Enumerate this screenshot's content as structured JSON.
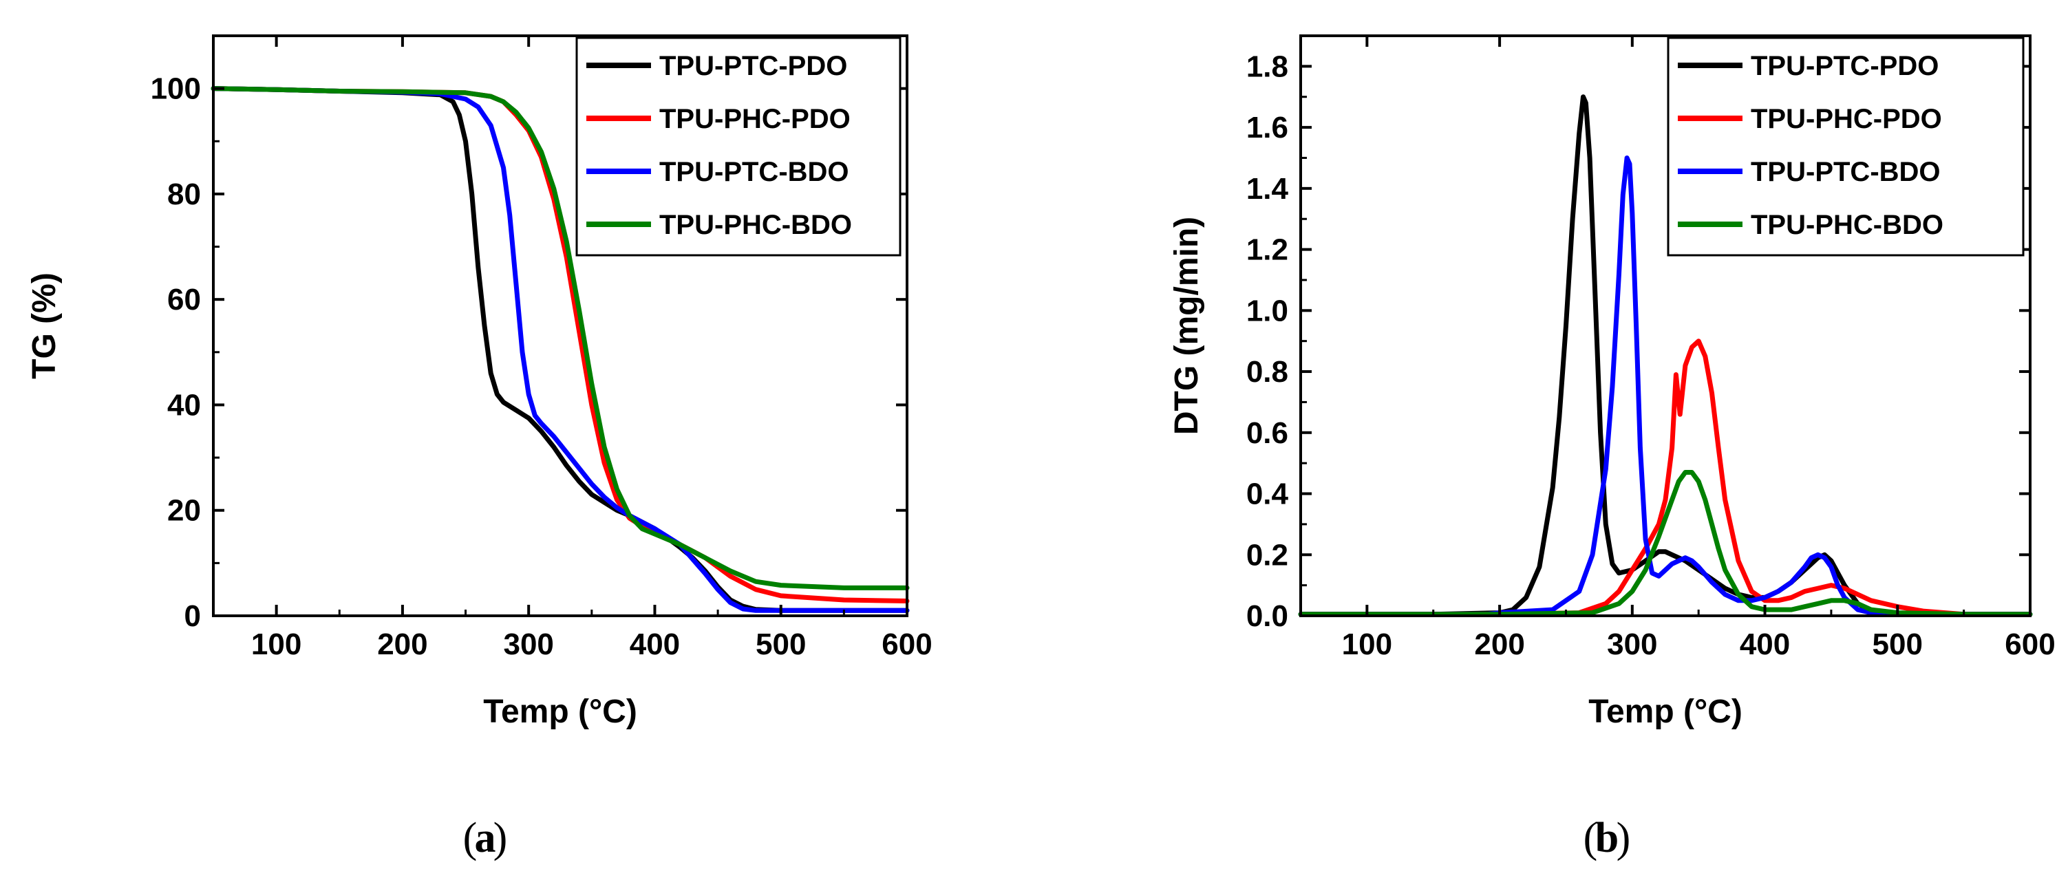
{
  "chart_data": [
    {
      "type": "line",
      "panel_label": "a",
      "xlabel": "Temp (°C)",
      "ylabel": "TG (%)",
      "xlim": [
        50,
        600
      ],
      "ylim": [
        0,
        110
      ],
      "xticks": [
        100,
        200,
        300,
        400,
        500,
        600
      ],
      "yticks": [
        0,
        20,
        40,
        60,
        80,
        100
      ],
      "legend_position": "top-right",
      "series": [
        {
          "name": "TPU-PTC-PDO",
          "color": "#000000",
          "x": [
            50,
            100,
            150,
            200,
            230,
            240,
            245,
            250,
            255,
            260,
            265,
            270,
            275,
            280,
            290,
            300,
            310,
            320,
            330,
            340,
            350,
            360,
            370,
            380,
            400,
            420,
            430,
            440,
            450,
            460,
            470,
            480,
            500,
            550,
            600
          ],
          "y": [
            100,
            99.8,
            99.5,
            99.2,
            98.8,
            97.5,
            95,
            90,
            80,
            66,
            55,
            46,
            42,
            40.5,
            39,
            37.5,
            35,
            32,
            28.5,
            25.5,
            23,
            21.5,
            20,
            19,
            16.5,
            13,
            11,
            8.5,
            5.5,
            3,
            1.8,
            1.2,
            1,
            1,
            1
          ]
        },
        {
          "name": "TPU-PHC-PDO",
          "color": "#ff0000",
          "x": [
            50,
            100,
            150,
            200,
            250,
            270,
            280,
            290,
            300,
            310,
            320,
            330,
            340,
            350,
            360,
            370,
            380,
            390,
            400,
            420,
            440,
            460,
            480,
            500,
            550,
            600
          ],
          "y": [
            100,
            99.8,
            99.5,
            99.4,
            99.2,
            98.5,
            97.5,
            95,
            92,
            87,
            79,
            68,
            54,
            40,
            29,
            22,
            18.5,
            17,
            16,
            13.5,
            11,
            7.5,
            5,
            3.8,
            3,
            2.8
          ]
        },
        {
          "name": "TPU-PTC-BDO",
          "color": "#0000ff",
          "x": [
            50,
            100,
            150,
            200,
            230,
            250,
            260,
            270,
            280,
            285,
            290,
            295,
            300,
            305,
            310,
            320,
            330,
            340,
            350,
            360,
            370,
            380,
            400,
            420,
            440,
            450,
            460,
            470,
            480,
            500,
            550,
            600
          ],
          "y": [
            100,
            99.8,
            99.5,
            99.3,
            99,
            98,
            96.5,
            93,
            85,
            76,
            63,
            50,
            42,
            38,
            36.5,
            34,
            31,
            28,
            25,
            22.5,
            20.5,
            19,
            16.5,
            13.5,
            8,
            5,
            2.5,
            1.3,
            1,
            1,
            1,
            1
          ]
        },
        {
          "name": "TPU-PHC-BDO",
          "color": "#008000",
          "x": [
            50,
            100,
            150,
            200,
            250,
            270,
            280,
            290,
            300,
            310,
            320,
            330,
            340,
            350,
            360,
            370,
            380,
            390,
            400,
            420,
            440,
            460,
            480,
            500,
            550,
            600
          ],
          "y": [
            100,
            99.8,
            99.5,
            99.4,
            99.2,
            98.5,
            97.5,
            95.5,
            92.5,
            88,
            81,
            71,
            58,
            44,
            32,
            24,
            19,
            16.5,
            15.5,
            13.5,
            11,
            8.5,
            6.5,
            5.8,
            5.3,
            5.3
          ]
        }
      ]
    },
    {
      "type": "line",
      "panel_label": "b",
      "xlabel": "Temp (°C)",
      "ylabel": "DTG (mg/min)",
      "xlim": [
        50,
        600
      ],
      "ylim": [
        0,
        1.9
      ],
      "xticks": [
        100,
        200,
        300,
        400,
        500,
        600
      ],
      "yticks": [
        0.0,
        0.2,
        0.4,
        0.6,
        0.8,
        1.0,
        1.2,
        1.4,
        1.6,
        1.8
      ],
      "legend_position": "top-right",
      "series": [
        {
          "name": "TPU-PTC-PDO",
          "color": "#000000",
          "x": [
            50,
            150,
            200,
            210,
            220,
            230,
            240,
            245,
            250,
            255,
            260,
            263,
            265,
            268,
            272,
            276,
            280,
            285,
            290,
            300,
            310,
            320,
            325,
            330,
            340,
            350,
            360,
            370,
            380,
            390,
            400,
            410,
            420,
            430,
            440,
            445,
            450,
            460,
            470,
            480,
            500,
            550,
            600
          ],
          "y": [
            0.005,
            0.005,
            0.01,
            0.02,
            0.06,
            0.16,
            0.42,
            0.65,
            0.95,
            1.3,
            1.58,
            1.7,
            1.68,
            1.5,
            1.05,
            0.6,
            0.3,
            0.17,
            0.14,
            0.15,
            0.18,
            0.21,
            0.21,
            0.2,
            0.18,
            0.15,
            0.12,
            0.09,
            0.07,
            0.06,
            0.06,
            0.08,
            0.11,
            0.15,
            0.19,
            0.2,
            0.18,
            0.1,
            0.04,
            0.015,
            0.005,
            0.005,
            0.005
          ]
        },
        {
          "name": "TPU-PHC-PDO",
          "color": "#ff0000",
          "x": [
            50,
            200,
            260,
            280,
            290,
            300,
            310,
            320,
            325,
            330,
            333,
            336,
            340,
            345,
            350,
            355,
            360,
            365,
            370,
            380,
            390,
            400,
            410,
            420,
            430,
            440,
            450,
            460,
            470,
            480,
            500,
            520,
            550,
            600
          ],
          "y": [
            0.005,
            0.005,
            0.01,
            0.04,
            0.08,
            0.15,
            0.22,
            0.3,
            0.38,
            0.55,
            0.79,
            0.66,
            0.82,
            0.88,
            0.9,
            0.85,
            0.73,
            0.55,
            0.38,
            0.18,
            0.08,
            0.05,
            0.05,
            0.06,
            0.08,
            0.09,
            0.1,
            0.09,
            0.07,
            0.05,
            0.03,
            0.015,
            0.005,
            0.005
          ]
        },
        {
          "name": "TPU-PTC-BDO",
          "color": "#0000ff",
          "x": [
            50,
            190,
            200,
            240,
            260,
            270,
            280,
            285,
            290,
            293,
            296,
            298,
            300,
            303,
            306,
            310,
            315,
            320,
            325,
            330,
            335,
            340,
            345,
            350,
            360,
            370,
            380,
            390,
            400,
            410,
            420,
            430,
            435,
            440,
            445,
            450,
            455,
            460,
            470,
            480,
            500,
            550,
            600
          ],
          "y": [
            0.005,
            0.005,
            0.01,
            0.02,
            0.08,
            0.2,
            0.48,
            0.75,
            1.12,
            1.38,
            1.5,
            1.48,
            1.32,
            0.95,
            0.55,
            0.25,
            0.14,
            0.13,
            0.15,
            0.17,
            0.18,
            0.19,
            0.18,
            0.16,
            0.11,
            0.07,
            0.05,
            0.05,
            0.06,
            0.08,
            0.11,
            0.16,
            0.19,
            0.2,
            0.19,
            0.16,
            0.1,
            0.06,
            0.02,
            0.01,
            0.005,
            0.005,
            0.005
          ]
        },
        {
          "name": "TPU-PHC-BDO",
          "color": "#008000",
          "x": [
            50,
            200,
            270,
            290,
            300,
            310,
            320,
            330,
            335,
            340,
            345,
            350,
            355,
            360,
            365,
            370,
            380,
            390,
            400,
            410,
            420,
            430,
            440,
            450,
            460,
            470,
            480,
            500,
            550,
            600
          ],
          "y": [
            0.005,
            0.005,
            0.01,
            0.04,
            0.08,
            0.15,
            0.26,
            0.38,
            0.44,
            0.47,
            0.47,
            0.44,
            0.38,
            0.3,
            0.22,
            0.15,
            0.07,
            0.03,
            0.02,
            0.02,
            0.02,
            0.03,
            0.04,
            0.05,
            0.05,
            0.04,
            0.02,
            0.01,
            0.005,
            0.005
          ]
        }
      ]
    }
  ],
  "captions": {
    "panel_a": "a",
    "panel_b": "b"
  }
}
